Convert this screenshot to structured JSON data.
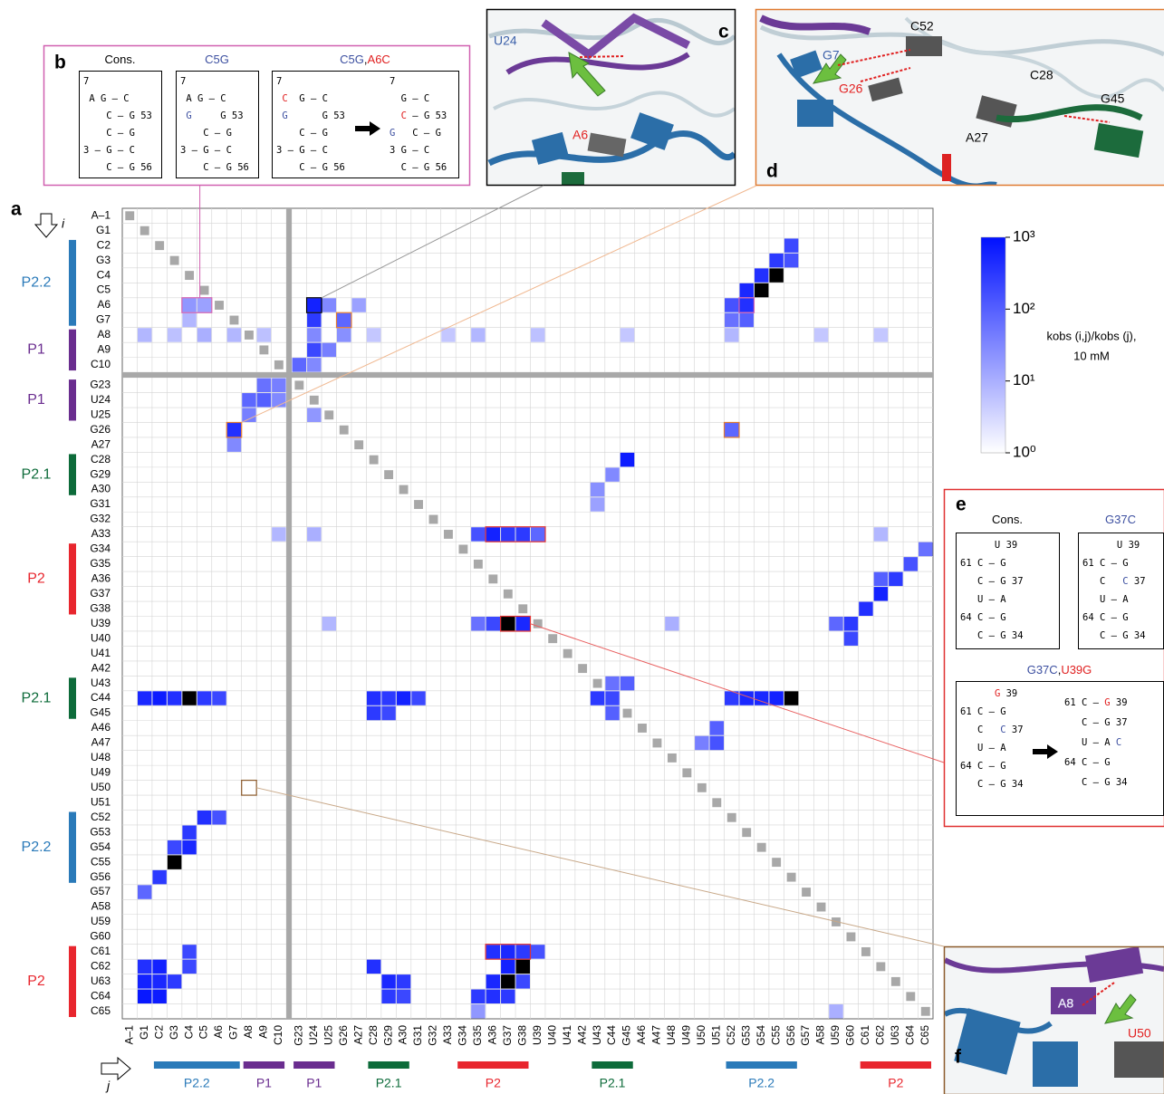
{
  "chart_data": {
    "type": "heatmap",
    "categories": [
      "A–1",
      "G1",
      "C2",
      "G3",
      "C4",
      "C5",
      "A6",
      "G7",
      "A8",
      "A9",
      "C10",
      "G23",
      "U24",
      "U25",
      "G26",
      "A27",
      "C28",
      "G29",
      "A30",
      "G31",
      "G32",
      "A33",
      "G34",
      "G35",
      "A36",
      "G37",
      "G38",
      "U39",
      "U40",
      "U41",
      "A42",
      "U43",
      "C44",
      "G45",
      "A46",
      "A47",
      "U48",
      "U49",
      "U50",
      "U51",
      "C52",
      "G53",
      "G54",
      "C55",
      "G56",
      "G57",
      "A58",
      "U59",
      "G60",
      "C61",
      "C62",
      "U63",
      "C64",
      "C65"
    ],
    "row_axis_label": "i",
    "col_axis_label": "j",
    "helices": [
      {
        "label": "P2.2",
        "color": "#2a7ab9"
      },
      {
        "label": "P1",
        "color": "#6a2d8f"
      },
      {
        "label": "P1",
        "color": "#6a2d8f"
      },
      {
        "label": "P2.1",
        "color": "#0d6b3a"
      },
      {
        "label": "P2",
        "color": "#e8262e"
      },
      {
        "label": "P2.1",
        "color": "#0d6b3a"
      },
      {
        "label": "P2.2",
        "color": "#2a7ab9"
      },
      {
        "label": "P2",
        "color": "#e8262e"
      }
    ],
    "cells": [
      [
        2,
        44,
        200
      ],
      [
        3,
        43,
        300
      ],
      [
        3,
        44,
        150
      ],
      [
        4,
        42,
        400
      ],
      [
        4,
        43,
        2000
      ],
      [
        5,
        42,
        2000
      ],
      [
        5,
        41,
        500
      ],
      [
        6,
        41,
        400
      ],
      [
        6,
        40,
        150
      ],
      [
        7,
        41,
        100
      ],
      [
        7,
        40,
        60
      ],
      [
        6,
        4,
        20
      ],
      [
        6,
        5,
        15
      ],
      [
        6,
        12,
        600
      ],
      [
        6,
        13,
        30
      ],
      [
        6,
        15,
        15
      ],
      [
        7,
        12,
        300
      ],
      [
        7,
        4,
        8
      ],
      [
        7,
        14,
        80
      ],
      [
        8,
        1,
        8
      ],
      [
        8,
        3,
        6
      ],
      [
        8,
        5,
        10
      ],
      [
        8,
        7,
        8
      ],
      [
        8,
        9,
        6
      ],
      [
        8,
        12,
        30
      ],
      [
        8,
        14,
        25
      ],
      [
        8,
        16,
        5
      ],
      [
        8,
        21,
        5
      ],
      [
        8,
        23,
        8
      ],
      [
        8,
        27,
        6
      ],
      [
        8,
        33,
        5
      ],
      [
        8,
        40,
        8
      ],
      [
        8,
        46,
        5
      ],
      [
        8,
        50,
        5
      ],
      [
        9,
        12,
        200
      ],
      [
        9,
        13,
        40
      ],
      [
        10,
        11,
        80
      ],
      [
        10,
        12,
        30
      ],
      [
        11,
        9,
        60
      ],
      [
        11,
        10,
        40
      ],
      [
        12,
        8,
        80
      ],
      [
        12,
        9,
        100
      ],
      [
        12,
        10,
        30
      ],
      [
        13,
        8,
        40
      ],
      [
        13,
        12,
        20
      ],
      [
        14,
        7,
        400
      ],
      [
        14,
        40,
        80
      ],
      [
        15,
        7,
        30
      ],
      [
        16,
        33,
        700
      ],
      [
        17,
        32,
        30
      ],
      [
        18,
        31,
        25
      ],
      [
        19,
        31,
        15
      ],
      [
        21,
        23,
        150
      ],
      [
        21,
        24,
        600
      ],
      [
        21,
        25,
        300
      ],
      [
        21,
        26,
        300
      ],
      [
        21,
        27,
        80
      ],
      [
        21,
        10,
        8
      ],
      [
        21,
        12,
        10
      ],
      [
        21,
        50,
        8
      ],
      [
        22,
        53,
        60
      ],
      [
        23,
        52,
        150
      ],
      [
        24,
        51,
        300
      ],
      [
        24,
        50,
        100
      ],
      [
        25,
        50,
        600
      ],
      [
        26,
        49,
        400
      ],
      [
        27,
        48,
        300
      ],
      [
        28,
        48,
        200
      ],
      [
        27,
        47,
        80
      ],
      [
        27,
        24,
        200
      ],
      [
        27,
        25,
        2000
      ],
      [
        27,
        26,
        500
      ],
      [
        27,
        23,
        60
      ],
      [
        27,
        13,
        8
      ],
      [
        27,
        36,
        10
      ],
      [
        31,
        33,
        100
      ],
      [
        31,
        32,
        60
      ],
      [
        32,
        31,
        300
      ],
      [
        32,
        32,
        200
      ],
      [
        33,
        32,
        100
      ],
      [
        32,
        1,
        500
      ],
      [
        32,
        2,
        700
      ],
      [
        32,
        3,
        400
      ],
      [
        32,
        4,
        2000
      ],
      [
        32,
        5,
        300
      ],
      [
        32,
        6,
        200
      ],
      [
        32,
        16,
        400
      ],
      [
        32,
        17,
        300
      ],
      [
        32,
        18,
        600
      ],
      [
        32,
        19,
        200
      ],
      [
        32,
        40,
        300
      ],
      [
        32,
        41,
        500
      ],
      [
        32,
        42,
        500
      ],
      [
        32,
        43,
        600
      ],
      [
        32,
        44,
        2000
      ],
      [
        33,
        16,
        300
      ],
      [
        33,
        17,
        200
      ],
      [
        34,
        39,
        100
      ],
      [
        35,
        39,
        150
      ],
      [
        35,
        38,
        40
      ],
      [
        40,
        5,
        400
      ],
      [
        40,
        6,
        150
      ],
      [
        41,
        4,
        300
      ],
      [
        42,
        3,
        200
      ],
      [
        42,
        4,
        500
      ],
      [
        43,
        3,
        2000
      ],
      [
        44,
        2,
        300
      ],
      [
        45,
        1,
        80
      ],
      [
        49,
        4,
        200
      ],
      [
        49,
        24,
        400
      ],
      [
        49,
        25,
        500
      ],
      [
        49,
        26,
        300
      ],
      [
        49,
        27,
        150
      ],
      [
        50,
        1,
        400
      ],
      [
        50,
        2,
        600
      ],
      [
        50,
        4,
        200
      ],
      [
        50,
        16,
        400
      ],
      [
        50,
        25,
        600
      ],
      [
        50,
        26,
        2000
      ],
      [
        51,
        1,
        600
      ],
      [
        51,
        2,
        500
      ],
      [
        51,
        3,
        300
      ],
      [
        51,
        17,
        500
      ],
      [
        51,
        18,
        300
      ],
      [
        51,
        24,
        500
      ],
      [
        51,
        25,
        2000
      ],
      [
        51,
        26,
        200
      ],
      [
        52,
        1,
        800
      ],
      [
        52,
        2,
        700
      ],
      [
        52,
        17,
        300
      ],
      [
        52,
        18,
        200
      ],
      [
        52,
        24,
        400
      ],
      [
        52,
        23,
        300
      ],
      [
        52,
        25,
        300
      ],
      [
        53,
        23,
        20
      ],
      [
        53,
        47,
        10
      ]
    ],
    "zlim": [
      1,
      1000
    ],
    "zscale": "log",
    "zticks": [
      {
        "value": 1000,
        "label": "10³"
      },
      {
        "value": 100,
        "label": "10²"
      },
      {
        "value": 10,
        "label": "10¹"
      },
      {
        "value": 1,
        "label": "10⁰"
      }
    ],
    "colors": [
      "#ffffff",
      "#0010ff"
    ],
    "over_color": "#000000",
    "reference_color": "#a8a8a8",
    "colorbar_label": [
      "kobs (i,j)/kobs (j),",
      "10 mM"
    ]
  },
  "panels": {
    "a": {
      "label": "a"
    },
    "b": {
      "label": "b",
      "structures": [
        {
          "title": [
            {
              "text": "Cons.",
              "color": "#000000"
            }
          ],
          "lines": [
            "7",
            " A G – C",
            "    C – G 53",
            "    C – G",
            "3 – G – C",
            "    C – G 56"
          ]
        },
        {
          "title": [
            {
              "text": "C5G",
              "color": "#3c4fa0"
            }
          ],
          "lines": [
            "7",
            " A G – C",
            [
              " ",
              {
                "text": "G",
                "color": "#3c4fa0"
              },
              "     G 53"
            ],
            "    C – G",
            "3 – G – C",
            "    C – G 56"
          ]
        },
        {
          "title": [
            {
              "text": "C5G",
              "color": "#3c4fa0"
            },
            {
              "text": ",",
              "color": "#000000"
            },
            {
              "text": "A6C",
              "color": "#e02020"
            }
          ],
          "lines": [
            "7",
            [
              " ",
              {
                "text": "C",
                "color": "#e02020"
              },
              "  G – C"
            ],
            [
              " ",
              {
                "text": "G",
                "color": "#3c4fa0"
              },
              "      G 53"
            ],
            "    C – G",
            "3 – G – C",
            "    C – G 56"
          ],
          "lines_after": [
            "7",
            "  G – C",
            [
              "  ",
              {
                "text": "C",
                "color": "#e02020"
              },
              " – G 53"
            ],
            [
              {
                "text": "G",
                "color": "#3c4fa0"
              },
              "   C – G"
            ],
            "3 G – C",
            "  C – G 56"
          ]
        }
      ]
    },
    "c": {
      "label": "c",
      "annotations": [
        {
          "text": "U24",
          "color": "#3a5fa8"
        },
        {
          "text": "A6",
          "color": "#e02020"
        }
      ]
    },
    "d": {
      "label": "d",
      "annotations": [
        {
          "text": "G7",
          "color": "#3a5fa8"
        },
        {
          "text": "G26",
          "color": "#e02020"
        },
        {
          "text": "C52",
          "color": "#000000"
        },
        {
          "text": "C28",
          "color": "#000000"
        },
        {
          "text": "G45",
          "color": "#000000"
        },
        {
          "text": "A27",
          "color": "#000000"
        }
      ]
    },
    "e": {
      "label": "e",
      "structures": [
        {
          "title": [
            {
              "text": "Cons.",
              "color": "#000000"
            }
          ],
          "lines": [
            "      U 39",
            "61 C – G",
            "   C – G 37",
            "   U – A",
            "64 C – G",
            "   C – G 34"
          ]
        },
        {
          "title": [
            {
              "text": "G37C",
              "color": "#3c4fa0"
            }
          ],
          "lines": [
            "      U 39",
            "61 C – G",
            [
              "   C   ",
              {
                "text": "C",
                "color": "#3c4fa0"
              },
              " 37"
            ],
            "   U – A",
            "64 C – G",
            "   C – G 34"
          ]
        },
        {
          "title": [
            {
              "text": "G37C",
              "color": "#3c4fa0"
            },
            {
              "text": ",",
              "color": "#000000"
            },
            {
              "text": "U39G",
              "color": "#e02020"
            }
          ],
          "lines": [
            [
              "      ",
              {
                "text": "G",
                "color": "#e02020"
              },
              " 39"
            ],
            "61 C – G",
            [
              "   C   ",
              {
                "text": "C",
                "color": "#3c4fa0"
              },
              " 37"
            ],
            "   U – A",
            "64 C – G",
            "   C – G 34"
          ],
          "lines_after": [
            [
              "61 C – ",
              {
                "text": "G",
                "color": "#e02020"
              },
              " 39"
            ],
            "   C – G 37",
            [
              "   U – A ",
              {
                "text": "C",
                "color": "#3c4fa0"
              }
            ],
            "64 C – G",
            "   C – G 34"
          ]
        }
      ]
    },
    "f": {
      "label": "f",
      "annotations": [
        {
          "text": "A8",
          "color": "#e8e8f8"
        },
        {
          "text": "U50",
          "color": "#e02020"
        }
      ]
    }
  }
}
